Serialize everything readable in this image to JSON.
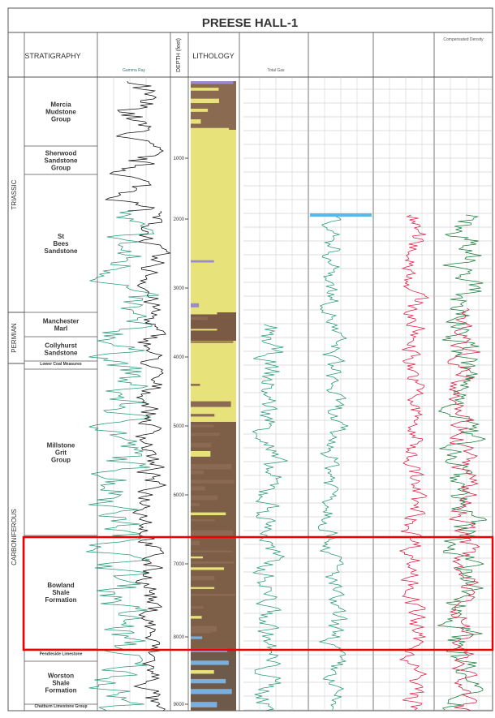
{
  "header": {
    "title": "PREESE HALL-1",
    "columns": [
      "STRATIGRAPHY",
      "DEPTH (feet)",
      "LITHOLOGY"
    ],
    "track_labels": [
      "Gamma Ray",
      "Total Gas",
      "Compensated Density"
    ]
  },
  "periods": [
    "TRIASSIC",
    "PERMIAN",
    "CARBONIFEROUS"
  ],
  "units": [
    "Mercia Mudstone Group",
    "Sherwood Sandstone Group",
    "St Bees Sandstone",
    "Manchester Marl",
    "Collyhurst Sandstone",
    "Lower Coal Measures",
    "Millstone Grit Group",
    "Bowland Shale Formation",
    "Pendleside Limestone",
    "Worston Shale Formation",
    "Chatburn Limestone Group"
  ],
  "depths": [
    "1000",
    "2000",
    "3000",
    "4000",
    "5000",
    "6000",
    "7000",
    "8000",
    "9000"
  ]
}
